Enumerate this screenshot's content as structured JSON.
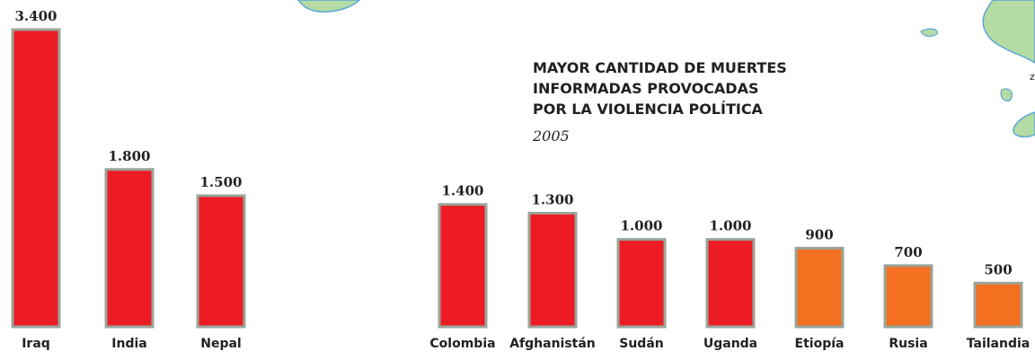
{
  "chart_data": {
    "type": "bar",
    "title": [
      "MAYOR CANTIDAD DE MUERTES",
      "INFORMADAS PROVOCADAS",
      "POR LA VIOLENCIA POLÍTICA"
    ],
    "subtitle": "2005",
    "map_labels": [
      "z"
    ],
    "categories": [
      "Iraq",
      "India",
      "Nepal",
      "Colombia",
      "Afghanistán",
      "Sudán",
      "Uganda",
      "Etiopía",
      "Rusia",
      "Tailandia"
    ],
    "values": [
      3400,
      1800,
      1500,
      1400,
      1300,
      1000,
      1000,
      900,
      700,
      500
    ],
    "value_labels": [
      "3.400",
      "1.800",
      "1.500",
      "1.400",
      "1.300",
      "1.000",
      "1.000",
      "900",
      "700",
      "500"
    ],
    "colors": [
      "#ed1c24",
      "#ed1c24",
      "#ed1c24",
      "#ed1c24",
      "#ed1c24",
      "#ed1c24",
      "#ed1c24",
      "#f37021",
      "#f37021",
      "#f37021"
    ]
  }
}
